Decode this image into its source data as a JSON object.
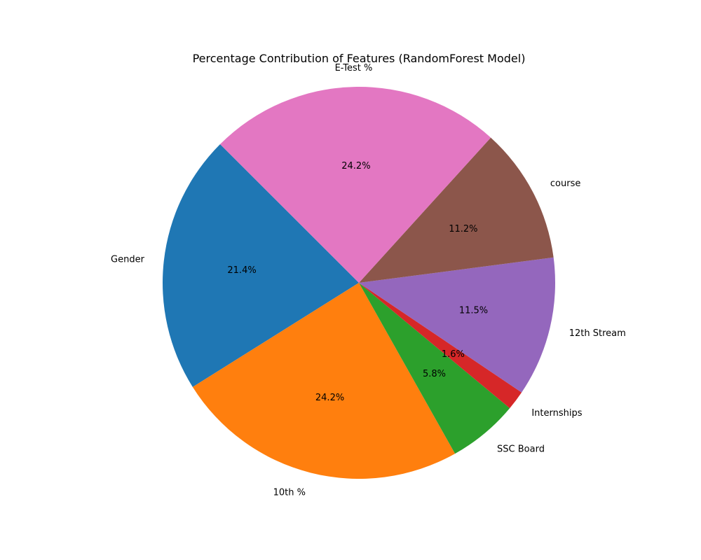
{
  "chart_data": {
    "type": "pie",
    "title": "Percentage Contribution of Features (RandomForest Model)",
    "labels": [
      "Gender",
      "10th %",
      "SSC Board",
      "Internships",
      "12th Stream",
      "course",
      "E-Test %"
    ],
    "values": [
      21.4,
      24.2,
      5.8,
      1.6,
      11.5,
      11.2,
      24.2
    ],
    "pct_labels": [
      "21.4%",
      "24.2%",
      "5.8%",
      "1.6%",
      "11.5%",
      "11.2%",
      "24.2%"
    ],
    "colors": [
      "#1f77b4",
      "#ff7f0e",
      "#2ca02c",
      "#d62728",
      "#9467bd",
      "#8c564b",
      "#e377c2"
    ],
    "start_angle_deg": 135,
    "direction": "counterclockwise"
  }
}
